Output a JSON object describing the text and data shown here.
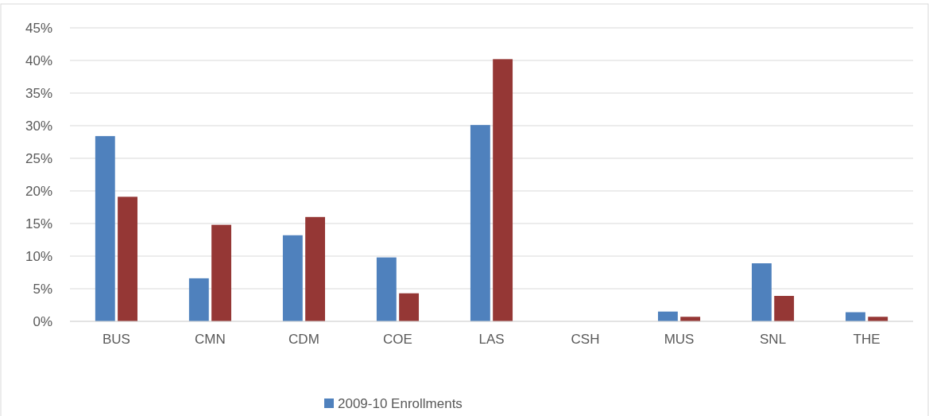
{
  "chart_data": {
    "type": "bar",
    "categories": [
      "BUS",
      "CMN",
      "CDM",
      "COE",
      "LAS",
      "CSH",
      "MUS",
      "SNL",
      "THE"
    ],
    "series": [
      {
        "name": "2009-10 Enrollments",
        "color": "#4f81bd",
        "values": [
          28.4,
          6.6,
          13.2,
          9.8,
          30.1,
          0,
          1.5,
          8.9,
          1.4
        ]
      },
      {
        "color": "#953735",
        "values": [
          19.1,
          14.8,
          16.0,
          4.3,
          40.2,
          0,
          0.7,
          3.9,
          0.7
        ]
      }
    ],
    "ylim": [
      0,
      45
    ],
    "yticks": [
      {
        "value": 0,
        "label": "0%"
      },
      {
        "value": 5,
        "label": "5%"
      },
      {
        "value": 10,
        "label": "10%"
      },
      {
        "value": 15,
        "label": "15%"
      },
      {
        "value": 20,
        "label": "20%"
      },
      {
        "value": 25,
        "label": "25%"
      },
      {
        "value": 30,
        "label": "30%"
      },
      {
        "value": 35,
        "label": "35%"
      },
      {
        "value": 40,
        "label": "40%"
      },
      {
        "value": 45,
        "label": "45%"
      }
    ],
    "grid": "y",
    "legend": "bottom"
  }
}
